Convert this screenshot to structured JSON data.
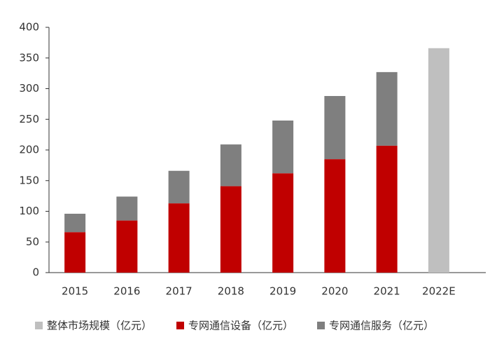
{
  "chart_data": {
    "type": "bar",
    "stacked": true,
    "categories": [
      "2015",
      "2016",
      "2017",
      "2018",
      "2019",
      "2020",
      "2021",
      "2022E"
    ],
    "series": [
      {
        "name": "整体市场规模（亿元）",
        "color": "#bfbfbf",
        "values": [
          null,
          null,
          null,
          null,
          null,
          null,
          null,
          366
        ]
      },
      {
        "name": "专网通信设备（亿元）",
        "color": "#c00000",
        "values": [
          66,
          85,
          113,
          141,
          162,
          185,
          207,
          null
        ]
      },
      {
        "name": "专网通信服务（亿元）",
        "color": "#7f7f7f",
        "values": [
          30,
          39,
          53,
          68,
          86,
          103,
          120,
          null
        ]
      }
    ],
    "ylim": [
      0,
      400
    ],
    "yticks": [
      0,
      50,
      100,
      150,
      200,
      250,
      300,
      350,
      400
    ],
    "grid": false,
    "legend": "bottom"
  }
}
